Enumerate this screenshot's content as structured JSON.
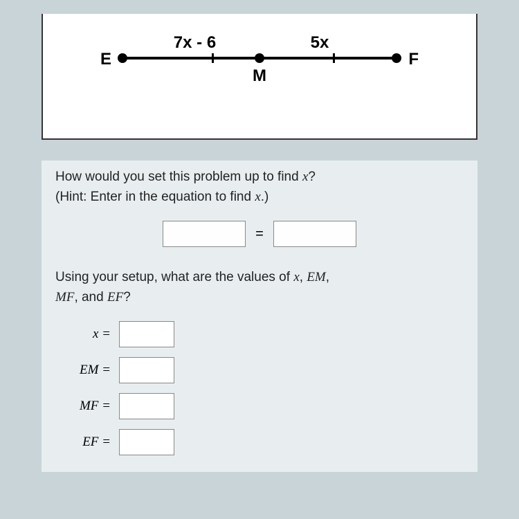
{
  "diagram": {
    "point_e_label": "E",
    "point_m_label": "M",
    "point_f_label": "F",
    "segment_em_label": "7x - 6",
    "segment_mf_label": "5x",
    "line_color": "#000000",
    "point_color": "#000000",
    "background": "#ffffff",
    "border_color": "#333333"
  },
  "question1": {
    "line1": "How would you set this problem up to find ",
    "var": "x",
    "line1_end": "?",
    "hint_start": "(Hint: Enter in the equation to find ",
    "hint_var": "x",
    "hint_end": ".)"
  },
  "equation": {
    "equals": "="
  },
  "question2": {
    "text_start": "Using your setup, what are the values of ",
    "var1": "x",
    "sep1": ", ",
    "var2": "EM",
    "sep2": ",",
    "var3": "MF",
    "sep3": ", and ",
    "var4": "EF",
    "text_end": "?"
  },
  "answers": {
    "x_label": "x =",
    "em_label": "EM =",
    "mf_label": "MF =",
    "ef_label": "EF ="
  },
  "colors": {
    "page_bg": "#c8d4d8",
    "section_bg": "#e8eef0",
    "input_border": "#888888"
  }
}
